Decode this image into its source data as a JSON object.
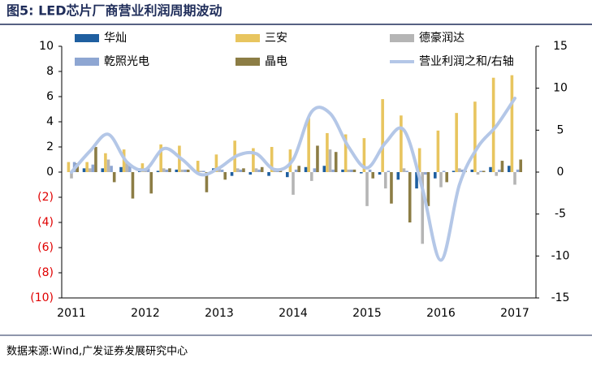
{
  "chart_data": {
    "type": "bar",
    "title": "图5:  LED芯片厂商营业利润周期波动",
    "source": "数据来源:Wind,广发证券发展研究中心",
    "categories": [
      "2011",
      null,
      null,
      null,
      "2012",
      null,
      null,
      null,
      "2013",
      null,
      null,
      null,
      "2014",
      null,
      null,
      null,
      "2015",
      null,
      null,
      null,
      "2016",
      null,
      null,
      null,
      "2017"
    ],
    "series": [
      {
        "name": "华灿",
        "color": "#1f5fa0",
        "values": [
          0,
          0.3,
          0.3,
          0.4,
          0.3,
          0.1,
          0.2,
          0.1,
          0.3,
          -0.3,
          -0.2,
          -0.3,
          -0.4,
          0.4,
          0.5,
          0.2,
          -0.1,
          -0.2,
          -0.6,
          -1.3,
          -0.5,
          0.1,
          0.2,
          0.4,
          0.5
        ]
      },
      {
        "name": "三安",
        "color": "#e8c55f",
        "values": [
          0.8,
          0.8,
          1.5,
          1.8,
          0.7,
          2.2,
          2.1,
          0.9,
          1.4,
          2.5,
          1.9,
          2.0,
          1.8,
          4.3,
          3.1,
          3.0,
          2.7,
          5.8,
          4.5,
          1.9,
          3.3,
          4.7,
          5.6,
          7.5,
          7.7
        ]
      },
      {
        "name": "德豪润达",
        "color": "#b5b5b5",
        "values": [
          -0.5,
          0.3,
          1.0,
          0.7,
          0.3,
          0.3,
          0.2,
          0.1,
          0.3,
          0.3,
          0.3,
          0.3,
          -1.8,
          -0.7,
          1.8,
          0.2,
          -2.7,
          -1.3,
          0.3,
          -5.7,
          -1.2,
          0.3,
          -0.2,
          -0.3,
          -1.0
        ]
      },
      {
        "name": "乾照光电",
        "color": "#8ea6d2",
        "values": [
          0.8,
          0.6,
          0.5,
          0.5,
          0.3,
          0.2,
          0.2,
          0.1,
          0.2,
          0.2,
          0.2,
          0.2,
          0.2,
          0.3,
          0.2,
          0.2,
          0.2,
          0.1,
          0.1,
          -0.2,
          0.1,
          0.2,
          0.1,
          0.2,
          0.2
        ]
      },
      {
        "name": "晶电",
        "color": "#8c7d45",
        "values": [
          0.7,
          2.0,
          -0.8,
          -2.1,
          -1.7,
          0.3,
          0.2,
          -1.6,
          -0.6,
          0.3,
          0.4,
          0.2,
          0.5,
          2.1,
          1.6,
          0.2,
          -0.5,
          -2.5,
          -4.0,
          -2.7,
          -0.8,
          0.1,
          0.1,
          0.9,
          1.0
        ]
      },
      {
        "name": "营业利润之和/右轴",
        "color": "#b4c7e7",
        "type": "line",
        "axis": "y2",
        "values": [
          0,
          2.5,
          4.5,
          1.2,
          0.3,
          2.8,
          1.5,
          -0.3,
          0.5,
          2,
          2.2,
          0.3,
          1.5,
          7.2,
          7,
          3,
          0.5,
          3.5,
          5,
          -2,
          -10.5,
          -1.5,
          3,
          5.5,
          8.8
        ]
      }
    ],
    "ylim": [
      -10,
      10
    ],
    "yticks": [
      10,
      8,
      6,
      4,
      2,
      0,
      {
        "value": -2,
        "label": "(2)"
      },
      {
        "value": -4,
        "label": "(4)"
      },
      {
        "value": -6,
        "label": "(6)"
      },
      {
        "value": -8,
        "label": "(8)"
      },
      {
        "value": -10,
        "label": "(10)"
      }
    ],
    "negative_tick_color": "#e00000",
    "y2lim": [
      -15,
      15
    ],
    "y2ticks": [
      15,
      10,
      5,
      0,
      -5,
      -10,
      -15
    ]
  }
}
